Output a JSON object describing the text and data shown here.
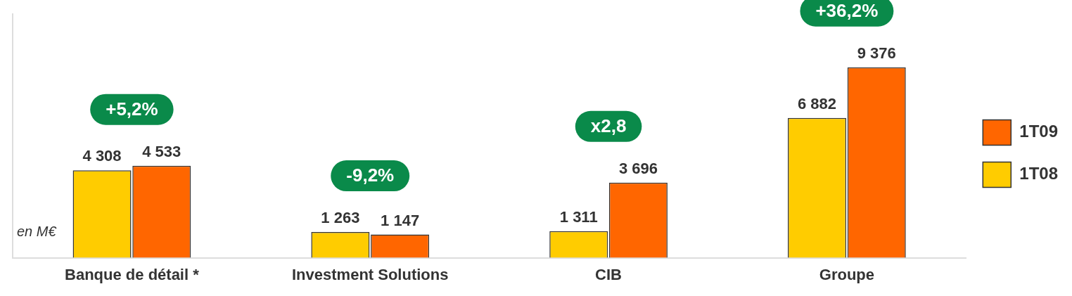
{
  "chart_data": {
    "type": "bar",
    "categories": [
      "Banque de détail *",
      "Investment Solutions",
      "CIB",
      "Groupe"
    ],
    "series": [
      {
        "name": "1T08",
        "color": "#ffcc00",
        "values": [
          4308,
          1263,
          1311,
          6882
        ],
        "value_labels": [
          "4 308",
          "1 263",
          "1 311",
          "6 882"
        ]
      },
      {
        "name": "1T09",
        "color": "#ff6600",
        "values": [
          4533,
          1147,
          3696,
          9376
        ],
        "value_labels": [
          "4 533",
          "1 147",
          "3 696",
          "9 376"
        ]
      }
    ],
    "annotations": [
      "+5,2%",
      "-9,2%",
      "x2,8",
      "+36,2%",
      "en M€"
    ],
    "legend": "right",
    "grid": false
  }
}
